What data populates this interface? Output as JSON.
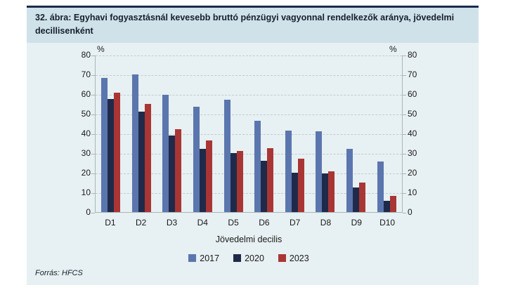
{
  "figure": {
    "title": "32. ábra: Egyhavi fogyasztásnál kevesebb bruttó pénzügyi vagyonnal rendelkezők aránya, jövedelmi decillisenként",
    "source": "Forrás: HFCS"
  },
  "chart_data": {
    "type": "bar",
    "categories": [
      "D1",
      "D2",
      "D3",
      "D4",
      "D5",
      "D6",
      "D7",
      "D8",
      "D9",
      "D10"
    ],
    "series": [
      {
        "name": "2017",
        "color": "#5b76ae",
        "values": [
          68,
          70,
          59.5,
          53.5,
          57,
          46.5,
          41.5,
          41,
          32,
          25.5
        ]
      },
      {
        "name": "2020",
        "color": "#1f2a4a",
        "values": [
          57.5,
          51,
          39,
          32,
          30,
          26,
          20,
          19.5,
          12.5,
          5.5
        ]
      },
      {
        "name": "2023",
        "color": "#a93634",
        "values": [
          60.5,
          55,
          42,
          36.5,
          31,
          32.5,
          27,
          20.5,
          15,
          8
        ]
      }
    ],
    "xlabel": "Jövedelmi decilis",
    "y_unit": "%",
    "ylim": [
      0,
      80
    ],
    "ytick_step": 10,
    "grid": "dashed horizontal",
    "legend_position": "bottom"
  }
}
